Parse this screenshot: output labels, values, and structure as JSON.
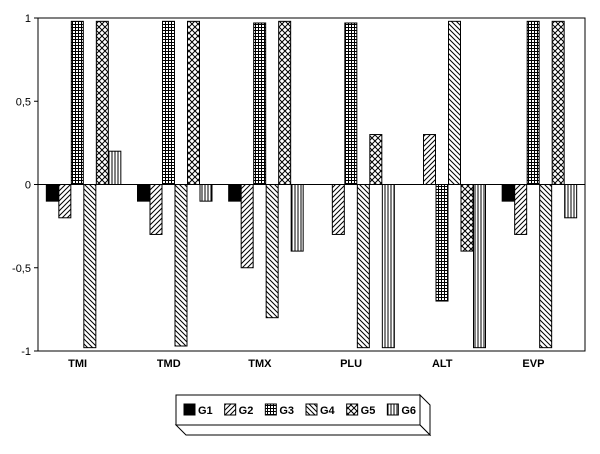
{
  "chart_data": {
    "type": "bar",
    "title": "",
    "xlabel": "",
    "ylabel": "",
    "ylim": [
      -1,
      1
    ],
    "yticks": [
      1,
      0.5,
      0,
      -0.5,
      -1
    ],
    "ytick_labels": [
      "1",
      "0,5",
      "0",
      "-0,5",
      "-1"
    ],
    "categories": [
      "TMI",
      "TMD",
      "TMX",
      "PLU",
      "ALT",
      "EVP"
    ],
    "series": [
      {
        "name": "G1",
        "pattern": "solid",
        "values": [
          -0.1,
          -0.1,
          -0.1,
          0,
          0,
          -0.1
        ]
      },
      {
        "name": "G2",
        "pattern": "diag-up",
        "values": [
          -0.2,
          -0.3,
          -0.5,
          -0.3,
          0.3,
          -0.3
        ]
      },
      {
        "name": "G3",
        "pattern": "grid",
        "values": [
          0.98,
          0.98,
          0.97,
          0.97,
          -0.7,
          0.98
        ]
      },
      {
        "name": "G4",
        "pattern": "diag-down",
        "values": [
          -0.98,
          -0.97,
          -0.8,
          -0.98,
          0.98,
          -0.98
        ]
      },
      {
        "name": "G5",
        "pattern": "crosshatch",
        "values": [
          0.98,
          0.98,
          0.98,
          0.3,
          -0.4,
          0.98
        ]
      },
      {
        "name": "G6",
        "pattern": "vertical",
        "values": [
          0.2,
          -0.1,
          -0.4,
          -0.98,
          -0.98,
          -0.2
        ]
      }
    ],
    "grid": false,
    "legend_position": "bottom"
  },
  "colors": {
    "ink": "#000000",
    "background": "#ffffff"
  }
}
